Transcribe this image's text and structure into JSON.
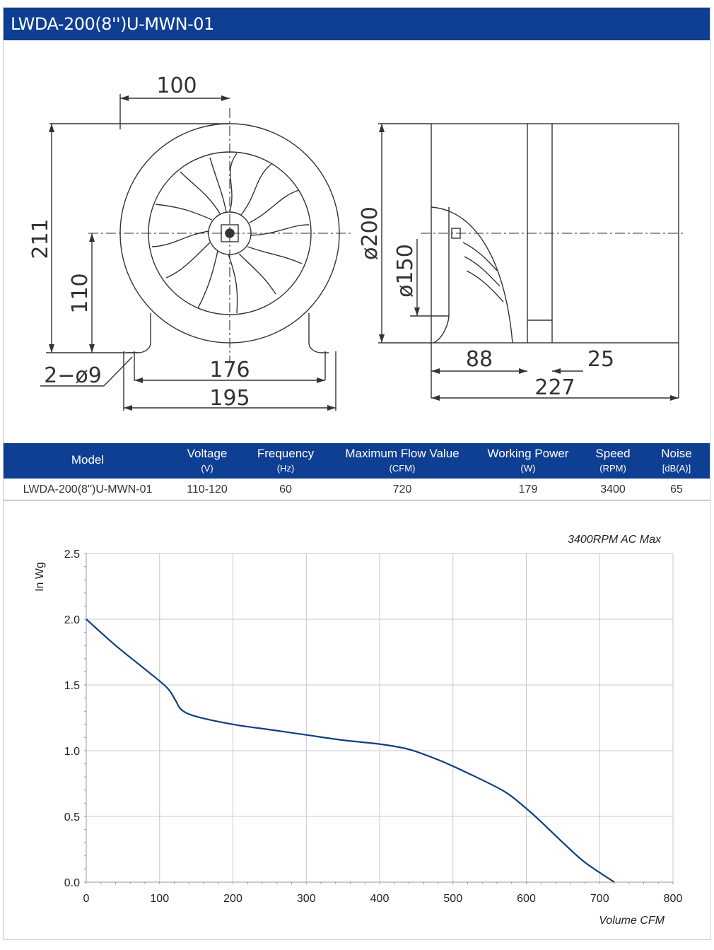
{
  "header": {
    "title": "LWDA-200(8'')U-MWN-01"
  },
  "drawing": {
    "front_view": {
      "dim_top": "100",
      "dim_height": "211",
      "dim_center": "110",
      "dim_hole": "2−ø9",
      "dim_base_inner": "176",
      "dim_base_outer": "195"
    },
    "side_view": {
      "dim_outer_diameter": "ø200",
      "dim_inner_diameter": "ø150",
      "dim_inlet": "88",
      "dim_outlet": "25",
      "dim_length": "227"
    }
  },
  "spec_table": {
    "columns": [
      {
        "label": "Model",
        "unit": ""
      },
      {
        "label": "Voltage",
        "unit": "(V)"
      },
      {
        "label": "Frequency",
        "unit": "(Hz)"
      },
      {
        "label": "Maximum Flow Value",
        "unit": "(CFM)"
      },
      {
        "label": "Working Power",
        "unit": "(W)"
      },
      {
        "label": "Speed",
        "unit": "(RPM)"
      },
      {
        "label": "Noise",
        "unit": "[dB(A)]"
      }
    ],
    "row": [
      "LWDA-200(8'')U-MWN-01",
      "110-120",
      "60",
      "720",
      "179",
      "3400",
      "65"
    ]
  },
  "chart_data": {
    "type": "line",
    "title": "3400RPM AC Max",
    "xlabel": "Volume CFM",
    "ylabel": "In Wg",
    "xlim": [
      0,
      800
    ],
    "ylim": [
      0,
      2.5
    ],
    "xticks": [
      "0",
      "100",
      "200",
      "300",
      "400",
      "500",
      "600",
      "700",
      "800"
    ],
    "yticks": [
      "0.0",
      "0.5",
      "1.0",
      "1.5",
      "2.0",
      "2.5"
    ],
    "grid": true,
    "series": [
      {
        "color": "#0f3f7f",
        "points": [
          [
            0,
            2.0
          ],
          [
            40,
            1.8
          ],
          [
            80,
            1.62
          ],
          [
            110,
            1.48
          ],
          [
            122,
            1.38
          ],
          [
            130,
            1.31
          ],
          [
            150,
            1.26
          ],
          [
            200,
            1.2
          ],
          [
            250,
            1.16
          ],
          [
            300,
            1.12
          ],
          [
            350,
            1.08
          ],
          [
            400,
            1.05
          ],
          [
            440,
            1.01
          ],
          [
            480,
            0.93
          ],
          [
            520,
            0.83
          ],
          [
            570,
            0.69
          ],
          [
            600,
            0.56
          ],
          [
            620,
            0.46
          ],
          [
            650,
            0.3
          ],
          [
            680,
            0.15
          ],
          [
            720,
            0.0
          ]
        ]
      }
    ]
  }
}
